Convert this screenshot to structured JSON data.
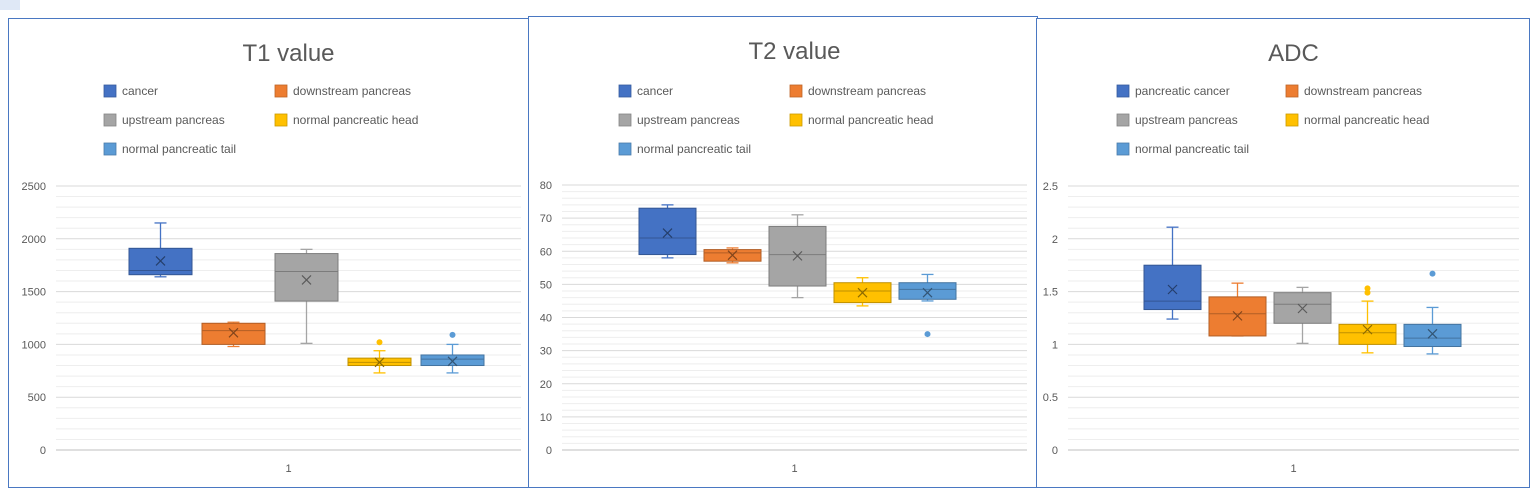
{
  "chart_data": [
    {
      "type": "box",
      "title": "T1 value",
      "ylim": [
        0,
        2500
      ],
      "ystep": 500,
      "yticks": [
        "0",
        "500",
        "1000",
        "1500",
        "2000",
        "2500"
      ],
      "categories": [
        "1"
      ],
      "legend": [
        "cancer",
        "downstream pancreas",
        "upstream pancreas",
        "normal pancreatic head",
        "normal pancreatic tail"
      ],
      "series": [
        {
          "name": "cancer",
          "color": "#4472c4",
          "min": 1640,
          "q1": 1660,
          "median": 1700,
          "q3": 1910,
          "max": 2150,
          "mean": 1790,
          "outliers": []
        },
        {
          "name": "downstream pancreas",
          "color": "#ed7d31",
          "min": 980,
          "q1": 1000,
          "median": 1130,
          "q3": 1200,
          "max": 1210,
          "mean": 1110,
          "outliers": []
        },
        {
          "name": "upstream pancreas",
          "color": "#a5a5a5",
          "min": 1010,
          "q1": 1410,
          "median": 1690,
          "q3": 1860,
          "max": 1900,
          "mean": 1610,
          "outliers": []
        },
        {
          "name": "normal pancreatic head",
          "color": "#ffc000",
          "min": 730,
          "q1": 800,
          "median": 830,
          "q3": 870,
          "max": 940,
          "mean": 830,
          "outliers": [
            1020
          ]
        },
        {
          "name": "normal pancreatic tail",
          "color": "#5b9bd5",
          "min": 730,
          "q1": 800,
          "median": 860,
          "q3": 900,
          "max": 1000,
          "mean": 840,
          "outliers": [
            1090
          ]
        }
      ]
    },
    {
      "type": "box",
      "title": "T2 value",
      "ylim": [
        0,
        80
      ],
      "ystep": 10,
      "yticks": [
        "0",
        "10",
        "20",
        "30",
        "40",
        "50",
        "60",
        "70",
        "80"
      ],
      "categories": [
        "1"
      ],
      "legend": [
        "cancer",
        "downstream pancreas",
        "upstream pancreas",
        "normal pancreatic head",
        "normal pancreatic tail"
      ],
      "series": [
        {
          "name": "cancer",
          "color": "#4472c4",
          "min": 58,
          "q1": 59,
          "median": 64,
          "q3": 73,
          "max": 74,
          "mean": 65.5,
          "outliers": []
        },
        {
          "name": "downstream pancreas",
          "color": "#ed7d31",
          "min": 56.5,
          "q1": 57,
          "median": 59.5,
          "q3": 60.5,
          "max": 61,
          "mean": 58.8,
          "outliers": []
        },
        {
          "name": "upstream pancreas",
          "color": "#a5a5a5",
          "min": 46,
          "q1": 49.5,
          "median": 59,
          "q3": 67.5,
          "max": 71,
          "mean": 58.6,
          "outliers": []
        },
        {
          "name": "normal pancreatic head",
          "color": "#ffc000",
          "min": 43.5,
          "q1": 44.5,
          "median": 48,
          "q3": 50.5,
          "max": 52,
          "mean": 47.5,
          "outliers": []
        },
        {
          "name": "normal pancreatic tail",
          "color": "#5b9bd5",
          "min": 45,
          "q1": 45.5,
          "median": 48.5,
          "q3": 50.5,
          "max": 53,
          "mean": 47.5,
          "outliers": [
            35
          ]
        }
      ]
    },
    {
      "type": "box",
      "title": "ADC",
      "ylim": [
        0,
        2.5
      ],
      "ystep": 0.5,
      "yticks": [
        "0",
        "0.5",
        "1",
        "1.5",
        "2",
        "2.5"
      ],
      "categories": [
        "1"
      ],
      "legend": [
        "pancreatic cancer",
        "downstream pancreas",
        "upstream pancreas",
        "normal pancreatic head",
        "normal pancreatic tail"
      ],
      "series": [
        {
          "name": "pancreatic cancer",
          "color": "#4472c4",
          "min": 1.24,
          "q1": 1.33,
          "median": 1.41,
          "q3": 1.75,
          "max": 2.11,
          "mean": 1.52,
          "outliers": []
        },
        {
          "name": "downstream pancreas",
          "color": "#ed7d31",
          "min": 1.08,
          "q1": 1.08,
          "median": 1.29,
          "q3": 1.45,
          "max": 1.58,
          "mean": 1.27,
          "outliers": []
        },
        {
          "name": "upstream pancreas",
          "color": "#a5a5a5",
          "min": 1.01,
          "q1": 1.2,
          "median": 1.38,
          "q3": 1.49,
          "max": 1.54,
          "mean": 1.34,
          "outliers": []
        },
        {
          "name": "normal pancreatic head",
          "color": "#ffc000",
          "min": 0.92,
          "q1": 1.0,
          "median": 1.11,
          "q3": 1.19,
          "max": 1.41,
          "mean": 1.14,
          "outliers": [
            1.49,
            1.53
          ]
        },
        {
          "name": "normal pancreatic tail",
          "color": "#5b9bd5",
          "min": 0.91,
          "q1": 0.98,
          "median": 1.06,
          "q3": 1.19,
          "max": 1.35,
          "mean": 1.1,
          "outliers": [
            1.67
          ]
        }
      ]
    }
  ]
}
